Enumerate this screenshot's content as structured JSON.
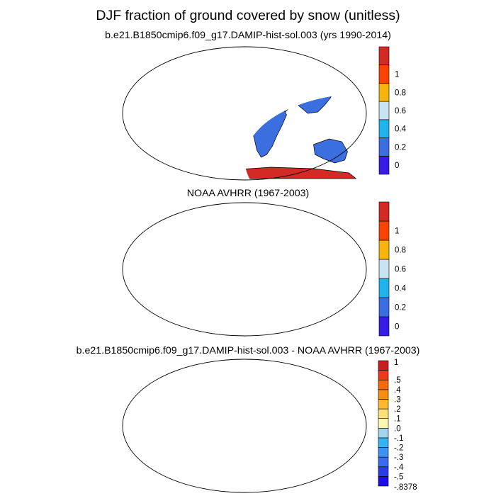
{
  "title": "DJF fraction of ground covered by snow (unitless)",
  "panels": [
    {
      "title": "b.e21.B1850cmip6.f09_g17.DAMIP-hist-sol.003 (yrs 1990-2014)",
      "colorbar": {
        "colors": [
          "#3a1ae6",
          "#3b6fe0",
          "#1fb4ee",
          "#c8e3f1",
          "#f7b40a",
          "#fa4300",
          "#d42a25"
        ],
        "labels": [
          "0",
          "0.2",
          "0.4",
          "0.6",
          "0.8",
          "1"
        ]
      }
    },
    {
      "title": "NOAA AVHRR (1967-2003)",
      "colorbar": {
        "colors": [
          "#3a1ae6",
          "#3b6fe0",
          "#1fb4ee",
          "#c8e3f1",
          "#f7b40a",
          "#fa4300",
          "#d42a25"
        ],
        "labels": [
          "0",
          "0.2",
          "0.4",
          "0.6",
          "0.8",
          "1"
        ]
      }
    },
    {
      "title": "b.e21.B1850cmip6.f09_g17.DAMIP-hist-sol.003 - NOAA AVHRR (1967-2003)",
      "colorbar": {
        "colors": [
          "#1a0fe0",
          "#2a3cea",
          "#3a6cf0",
          "#3c92f2",
          "#35b4f2",
          "#a5d4ef",
          "#fbf6b0",
          "#fde07a",
          "#fbb92e",
          "#fa8c10",
          "#f56a0a",
          "#ec3a18",
          "#c81e1e"
        ],
        "labels": [
          "-.8378",
          "-.5",
          "-.4",
          "-.3",
          "-.2",
          "-.1",
          ".0",
          ".1",
          ".2",
          ".3",
          ".4",
          ".5",
          "1"
        ]
      }
    }
  ]
}
